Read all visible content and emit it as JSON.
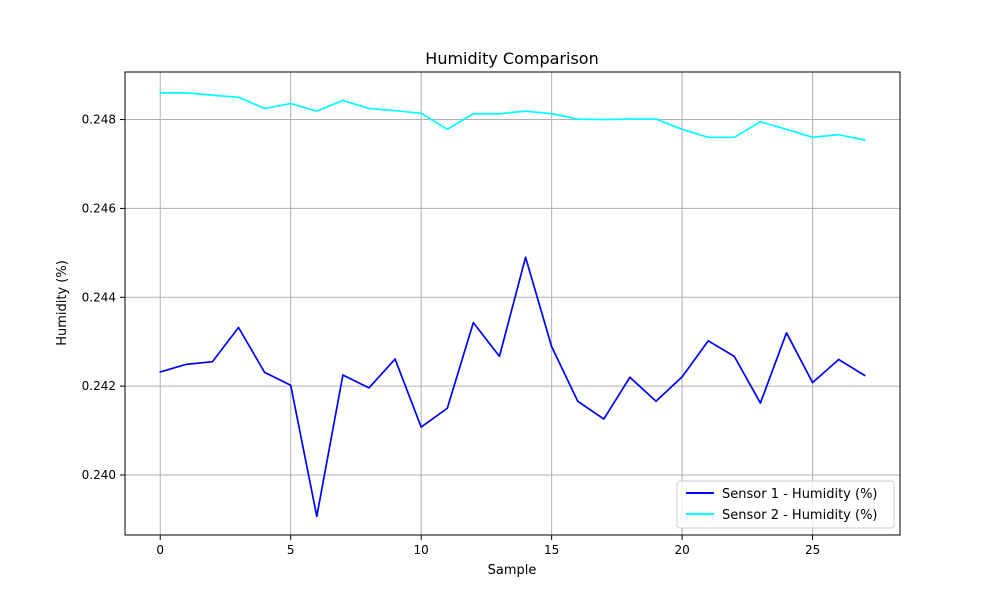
{
  "chart_data": {
    "type": "line",
    "title": "Humidity Comparison",
    "xlabel": "Sample",
    "ylabel": "Humidity (%)",
    "xlim": [
      -1.35,
      28.35
    ],
    "ylim": [
      0.23865,
      0.24907
    ],
    "xticks": [
      0,
      5,
      10,
      15,
      20,
      25
    ],
    "yticks": [
      0.24,
      0.242,
      0.244,
      0.246,
      0.248
    ],
    "grid": true,
    "legend_position": "lower-right",
    "x": [
      0,
      1,
      2,
      3,
      4,
      5,
      6,
      7,
      8,
      9,
      10,
      11,
      12,
      13,
      14,
      15,
      16,
      17,
      18,
      19,
      20,
      21,
      22,
      23,
      24,
      25,
      26,
      27
    ],
    "series": [
      {
        "name": "Sensor 1 - Humidity (%)",
        "color": "#0000ff",
        "values": [
          0.24232,
          0.24249,
          0.24255,
          0.24332,
          0.24231,
          0.24202,
          0.23907,
          0.24225,
          0.24196,
          0.24261,
          0.24108,
          0.2415,
          0.24343,
          0.24267,
          0.2449,
          0.24289,
          0.24166,
          0.24126,
          0.2422,
          0.24166,
          0.24221,
          0.24302,
          0.24267,
          0.24162,
          0.2432,
          0.24208,
          0.2426,
          0.24224
        ]
      },
      {
        "name": "Sensor 2 - Humidity (%)",
        "color": "#00ffff",
        "values": [
          0.2486,
          0.2486,
          0.24855,
          0.2485,
          0.24825,
          0.24836,
          0.24819,
          0.24843,
          0.24825,
          0.2482,
          0.24814,
          0.24778,
          0.24813,
          0.24813,
          0.24819,
          0.24813,
          0.24801,
          0.248,
          0.24801,
          0.24801,
          0.24778,
          0.2476,
          0.2476,
          0.24795,
          0.24778,
          0.2476,
          0.24766,
          0.24754
        ]
      }
    ]
  }
}
